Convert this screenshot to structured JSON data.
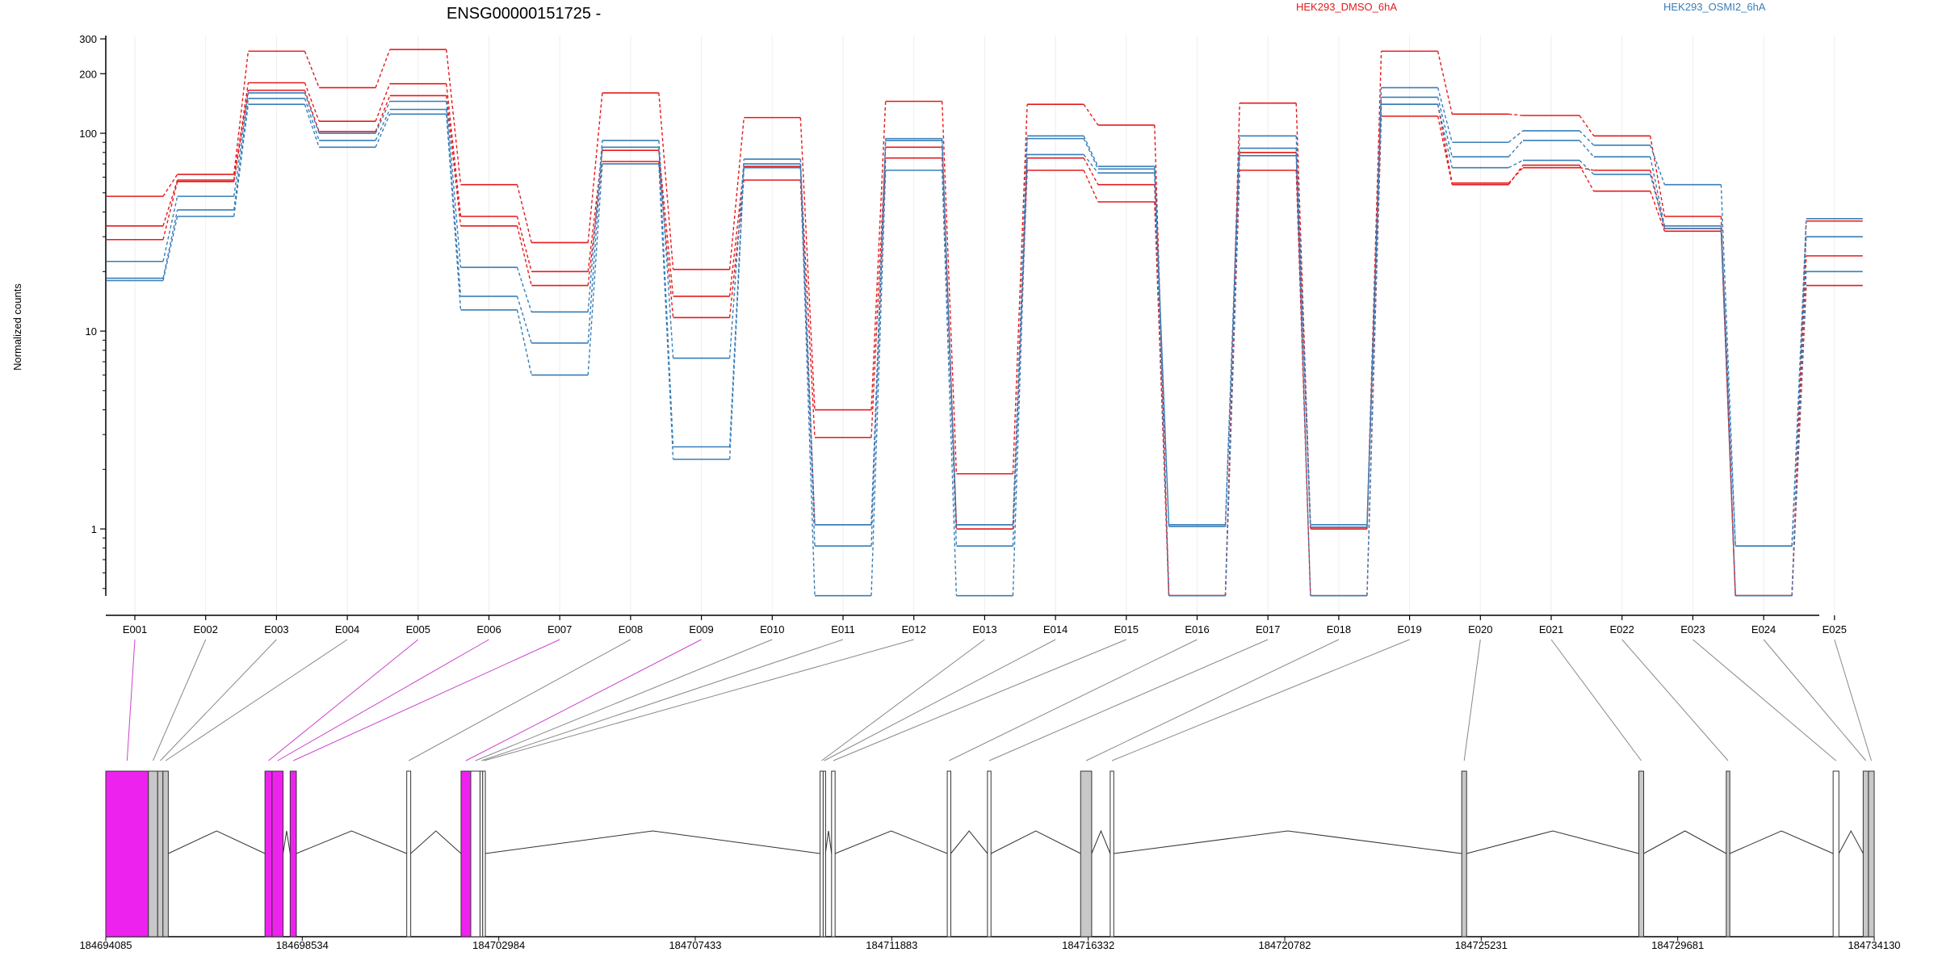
{
  "chart_data": {
    "type": "line",
    "title": "ENSG00000151725 -",
    "ylabel": "Normalized counts",
    "yscale": "log",
    "ylim": [
      0.45,
      330
    ],
    "yticks": [
      1,
      10,
      100,
      200,
      300
    ],
    "ytick_labels": [
      "1",
      "10",
      "100",
      "200",
      "300"
    ],
    "colors": {
      "DMSO": "#e41a1c",
      "OSMI2": "#377eb8",
      "dm_gray": "#c8c8c8",
      "dm_magenta": "#ee22ee"
    },
    "legend": [
      {
        "label": "HEK293_DMSO_6hA",
        "color": "#e41a1c"
      },
      {
        "label": "HEK293_OSMI2_6hA",
        "color": "#377eb8"
      }
    ],
    "categories": [
      "E001",
      "E002",
      "E003",
      "E004",
      "E005",
      "E006",
      "E007",
      "E008",
      "E009",
      "E010",
      "E011",
      "E012",
      "E013",
      "E014",
      "E015",
      "E016",
      "E017",
      "E018",
      "E019",
      "E020",
      "E021",
      "E022",
      "E023",
      "E024",
      "E025"
    ],
    "series": [
      {
        "group": "DMSO",
        "values": [
          48,
          62,
          260,
          170,
          265,
          55,
          28,
          160,
          20.5,
          120,
          4.0,
          145,
          1.9,
          140,
          110,
          0.46,
          142,
          1.02,
          260,
          125,
          123,
          97,
          38,
          0.46,
          36
        ]
      },
      {
        "group": "DMSO",
        "values": [
          34,
          58,
          180,
          115,
          178,
          38,
          20,
          82,
          15.0,
          68,
          2.9,
          85,
          1.05,
          75,
          55,
          0.46,
          80,
          1.0,
          140,
          56,
          67,
          65,
          33,
          0.46,
          24
        ]
      },
      {
        "group": "DMSO",
        "values": [
          29,
          57,
          165,
          102,
          155,
          34,
          17,
          72,
          11.7,
          58,
          1.05,
          75,
          1.0,
          65,
          45,
          0.46,
          65,
          0.46,
          122,
          55,
          69,
          51,
          32,
          0.46,
          17
        ]
      },
      {
        "group": "OSMI2",
        "values": [
          22.5,
          48,
          160,
          100,
          145,
          21,
          12.5,
          92,
          7.3,
          74,
          1.05,
          94,
          1.05,
          97,
          68,
          1.05,
          97,
          1.05,
          170,
          90,
          103,
          87,
          55,
          0.82,
          37
        ]
      },
      {
        "group": "OSMI2",
        "values": [
          18.5,
          41,
          150,
          92,
          132,
          15,
          8.7,
          85,
          2.6,
          70,
          0.82,
          92,
          0.82,
          94,
          66,
          1.03,
          84,
          1.02,
          152,
          76,
          92,
          76,
          34,
          0.82,
          30
        ]
      },
      {
        "group": "OSMI2",
        "values": [
          18,
          38,
          140,
          85,
          125,
          12.8,
          6.0,
          70,
          2.25,
          67,
          0.46,
          65,
          0.46,
          78,
          63,
          0.46,
          77,
          0.46,
          140,
          67,
          73,
          62,
          33,
          0.46,
          20
        ]
      }
    ],
    "gene_model": {
      "genomic_ticks": [
        "184694085",
        "184698534",
        "184702984",
        "184707433",
        "184711883",
        "184716332",
        "184720782",
        "184725231",
        "184729681",
        "184734130"
      ],
      "coord_range": [
        184694085,
        184734130
      ],
      "exons": [
        {
          "id": "E001",
          "start": 184694085,
          "end": 184695050,
          "fill": "#ee22ee"
        },
        {
          "id": "E002",
          "start": 184695050,
          "end": 184695260,
          "fill": "#c8c8c8"
        },
        {
          "id": "E003",
          "start": 184695260,
          "end": 184695380,
          "fill": "#c8c8c8"
        },
        {
          "id": "E004",
          "start": 184695380,
          "end": 184695500,
          "fill": "#c8c8c8"
        },
        {
          "id": "E005",
          "start": 184697690,
          "end": 184697850,
          "fill": "#ee22ee"
        },
        {
          "id": "E006",
          "start": 184697850,
          "end": 184698100,
          "fill": "#ee22ee"
        },
        {
          "id": "E007",
          "start": 184698260,
          "end": 184698400,
          "fill": "#ee22ee"
        },
        {
          "id": "E008",
          "start": 184700900,
          "end": 184700990,
          "fill": "#ffffff"
        },
        {
          "id": "E009",
          "start": 184702130,
          "end": 184702350,
          "fill": "#ee22ee"
        },
        {
          "id": "E010",
          "start": 184702350,
          "end": 184702560,
          "fill": "#ffffff"
        },
        {
          "id": "E011",
          "start": 184702560,
          "end": 184702620,
          "fill": "#ffffff"
        },
        {
          "id": "E012",
          "start": 184702620,
          "end": 184702680,
          "fill": "#ffffff"
        },
        {
          "id": "E013",
          "start": 184710260,
          "end": 184710330,
          "fill": "#ffffff"
        },
        {
          "id": "E014",
          "start": 184710330,
          "end": 184710380,
          "fill": "#ffffff"
        },
        {
          "id": "E015",
          "start": 184710520,
          "end": 184710600,
          "fill": "#ffffff"
        },
        {
          "id": "E016",
          "start": 184713140,
          "end": 184713220,
          "fill": "#ffffff"
        },
        {
          "id": "E017",
          "start": 184714050,
          "end": 184714130,
          "fill": "#ffffff"
        },
        {
          "id": "E018",
          "start": 184716160,
          "end": 184716410,
          "fill": "#c8c8c8"
        },
        {
          "id": "E019",
          "start": 184716830,
          "end": 184716910,
          "fill": "#ffffff"
        },
        {
          "id": "E020",
          "start": 184724790,
          "end": 184724900,
          "fill": "#c8c8c8"
        },
        {
          "id": "E021",
          "start": 184728800,
          "end": 184728910,
          "fill": "#c8c8c8"
        },
        {
          "id": "E022",
          "start": 184730780,
          "end": 184730860,
          "fill": "#c8c8c8"
        },
        {
          "id": "E023",
          "start": 184733200,
          "end": 184733330,
          "fill": "#ffffff"
        },
        {
          "id": "E024",
          "start": 184733880,
          "end": 184734000,
          "fill": "#c8c8c8"
        },
        {
          "id": "E025",
          "start": 184734000,
          "end": 184734130,
          "fill": "#c8c8c8"
        }
      ],
      "connector_colors": [
        "#cc44cc",
        "#888888",
        "#888888",
        "#888888",
        "#cc44cc",
        "#cc44cc",
        "#cc44cc",
        "#888888",
        "#cc44cc",
        "#888888",
        "#888888",
        "#888888",
        "#888888",
        "#888888",
        "#888888",
        "#888888",
        "#888888",
        "#888888",
        "#888888",
        "#888888",
        "#888888",
        "#888888",
        "#888888",
        "#888888",
        "#888888"
      ]
    }
  }
}
